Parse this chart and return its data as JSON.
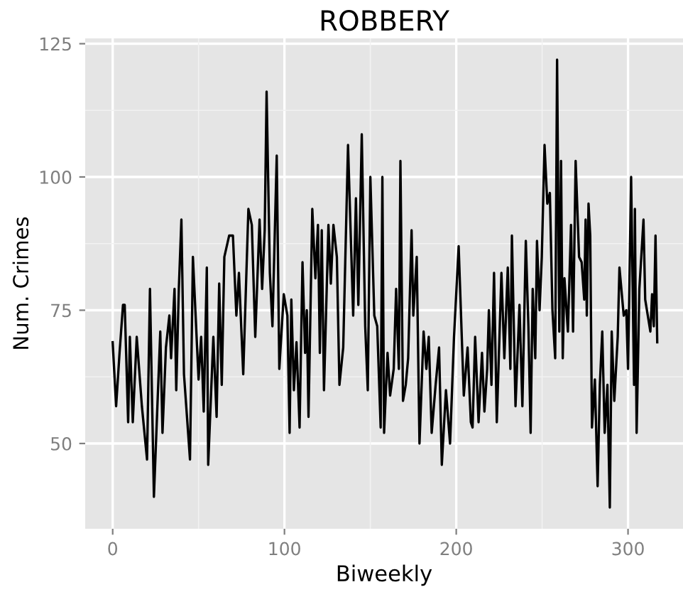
{
  "chart_data": {
    "type": "line",
    "title": "ROBBERY",
    "xlabel": "Biweekly",
    "ylabel": "Num. Crimes",
    "xlim": [
      -16,
      332
    ],
    "ylim": [
      34,
      126
    ],
    "xticks": [
      0,
      100,
      200,
      300
    ],
    "yticks": [
      50,
      75,
      100,
      125
    ],
    "grid": true,
    "legend": false,
    "marker": "none",
    "line_style": "solid",
    "series": [
      {
        "color": "#000000",
        "x": [
          0,
          2,
          4,
          6,
          7,
          9,
          10,
          11.7,
          14,
          17,
          20,
          21.7,
          24,
          27.7,
          29,
          31,
          33,
          34,
          36,
          37,
          38.5,
          40,
          41.5,
          45,
          46.7,
          50,
          51.5,
          53,
          54.8,
          55.6,
          58.6,
          60.5,
          62,
          63.5,
          65,
          67.8,
          70,
          72,
          73.5,
          76,
          79,
          81,
          83,
          85.5,
          87,
          88.5,
          89.6,
          91.5,
          93,
          95.5,
          97,
          99.6,
          101.7,
          103,
          104,
          105.5,
          107,
          108.8,
          110.5,
          112,
          113,
          114,
          116.2,
          118,
          119.5,
          120.6,
          121.7,
          123,
          125.6,
          127,
          128.5,
          130.5,
          132,
          134.2,
          137,
          140,
          141.6,
          143,
          145,
          147,
          148.5,
          150,
          152.3,
          154,
          156,
          157,
          158,
          160,
          161.5,
          163.6,
          165,
          166.6,
          167.5,
          169,
          170.6,
          172,
          174,
          175,
          177,
          178.6,
          181,
          182.6,
          184,
          185.7,
          188,
          190,
          191.6,
          194,
          196.4,
          198.7,
          201.4,
          204.4,
          206.6,
          208.5,
          209.5,
          211,
          213,
          215,
          216.4,
          218,
          219,
          220.5,
          222,
          223.6,
          226.3,
          228,
          230,
          231.5,
          232.4,
          234.5,
          236.8,
          238.5,
          240.5,
          242,
          243.3,
          244.5,
          246,
          247,
          248.5,
          249.8,
          251.4,
          253,
          254.5,
          256,
          257.6,
          258.7,
          260,
          261,
          262,
          263,
          265,
          266.8,
          268,
          269.5,
          271.5,
          273,
          274.5,
          275.3,
          276,
          277,
          278,
          279,
          280.7,
          282.3,
          283.6,
          285,
          286.4,
          288,
          289.4,
          290.5,
          292,
          294,
          295,
          297.5,
          299,
          300,
          301.8,
          303.5,
          304,
          305,
          306.6,
          309,
          310,
          311.5,
          313,
          314,
          315,
          316,
          317
        ],
        "values": [
          69,
          57,
          67,
          76,
          76,
          54,
          70,
          54,
          70,
          57,
          47,
          79,
          40,
          71,
          52,
          68,
          74,
          66,
          79,
          60,
          79,
          92,
          63,
          47,
          85,
          62,
          70,
          56,
          83,
          46,
          70,
          55,
          80,
          61,
          85,
          89,
          89,
          74,
          82,
          63,
          94,
          91,
          70,
          92,
          79,
          90,
          116,
          82,
          72,
          104,
          64,
          78,
          74,
          52,
          77,
          60,
          69,
          53,
          84,
          67,
          75,
          55,
          94,
          81,
          91,
          67,
          90,
          60,
          91,
          80,
          91,
          85,
          61,
          68,
          106,
          74,
          96,
          76,
          108,
          72,
          60,
          100,
          74,
          72,
          53,
          100,
          52,
          67,
          59,
          64,
          79,
          64,
          103,
          58,
          61,
          66,
          90,
          74,
          85,
          50,
          71,
          64,
          70,
          52,
          61,
          68,
          46,
          60,
          50,
          70,
          87,
          59,
          68,
          54,
          53,
          70,
          54,
          67,
          56,
          64,
          75,
          61,
          82,
          54,
          82,
          66,
          83,
          64,
          89,
          57,
          76,
          57,
          88,
          72,
          52,
          79,
          66,
          88,
          75,
          85,
          106,
          95,
          97,
          75,
          66,
          122,
          71,
          103,
          66,
          81,
          71,
          91,
          71,
          103,
          85,
          84,
          77,
          92,
          74,
          95,
          89,
          53,
          62,
          42,
          61,
          71,
          52,
          61,
          38,
          71,
          58,
          70,
          83,
          74,
          75,
          64,
          100,
          61,
          94,
          52,
          79,
          92,
          77,
          74,
          71,
          78,
          72,
          89,
          69
        ]
      }
    ]
  }
}
